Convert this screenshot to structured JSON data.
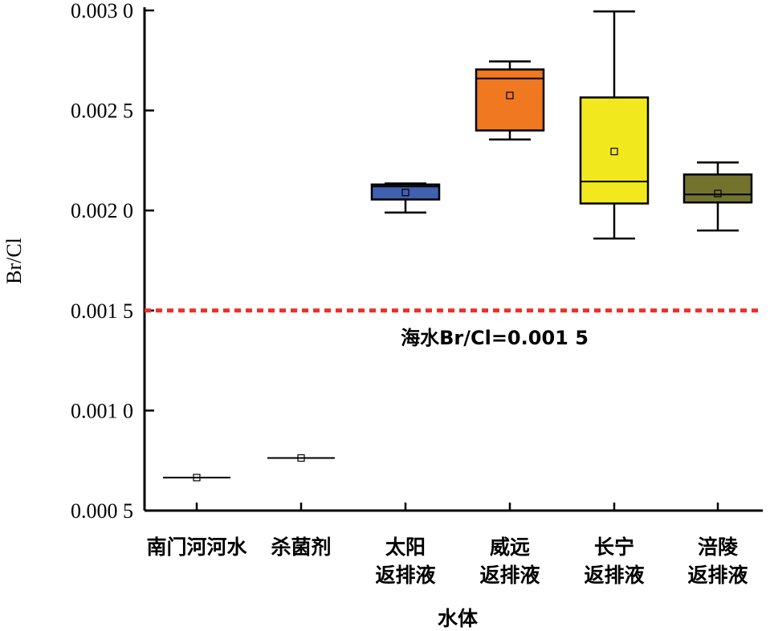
{
  "chart_data": {
    "type": "box",
    "ylabel": "Br/Cl",
    "xlabel": "水体",
    "ylim": [
      0.0005,
      0.003
    ],
    "yticks": [
      {
        "value": 0.0005,
        "label": "0.000 5"
      },
      {
        "value": 0.001,
        "label": "0.001 0"
      },
      {
        "value": 0.0015,
        "label": "0.001 5"
      },
      {
        "value": 0.002,
        "label": "0.002 0"
      },
      {
        "value": 0.0025,
        "label": "0.002 5"
      },
      {
        "value": 0.003,
        "label": "0.003 0"
      }
    ],
    "categories": [
      {
        "line1": "南门河河水",
        "line2": "",
        "min": 0.000665,
        "q1": 0.000665,
        "median": 0.000665,
        "q3": 0.000665,
        "max": 0.000665,
        "mean": 0.000665,
        "color": ""
      },
      {
        "line1": "杀菌剂",
        "line2": "",
        "min": 0.000763,
        "q1": 0.000763,
        "median": 0.000763,
        "q3": 0.000763,
        "max": 0.000763,
        "mean": 0.000763,
        "color": ""
      },
      {
        "line1": "太阳",
        "line2": "返排液",
        "min": 0.00199,
        "q1": 0.002055,
        "median": 0.00212,
        "q3": 0.00213,
        "max": 0.002135,
        "mean": 0.00209,
        "color": "#4060b0"
      },
      {
        "line1": "威远",
        "line2": "返排液",
        "min": 0.002355,
        "q1": 0.0024,
        "median": 0.00266,
        "q3": 0.002705,
        "max": 0.002745,
        "mean": 0.002575,
        "color": "#f07820"
      },
      {
        "line1": "长宁",
        "line2": "返排液",
        "min": 0.00186,
        "q1": 0.002035,
        "median": 0.002145,
        "q3": 0.002565,
        "max": 0.002995,
        "mean": 0.002295,
        "color": "#f2e81e"
      },
      {
        "line1": "涪陵",
        "line2": "返排液",
        "min": 0.0019,
        "q1": 0.00204,
        "median": 0.00208,
        "q3": 0.00218,
        "max": 0.00224,
        "mean": 0.002085,
        "color": "#73732e"
      }
    ],
    "reference_line": {
      "value": 0.0015,
      "label": "海水Br/Cl=0.001 5",
      "color": "#e8312a"
    }
  }
}
